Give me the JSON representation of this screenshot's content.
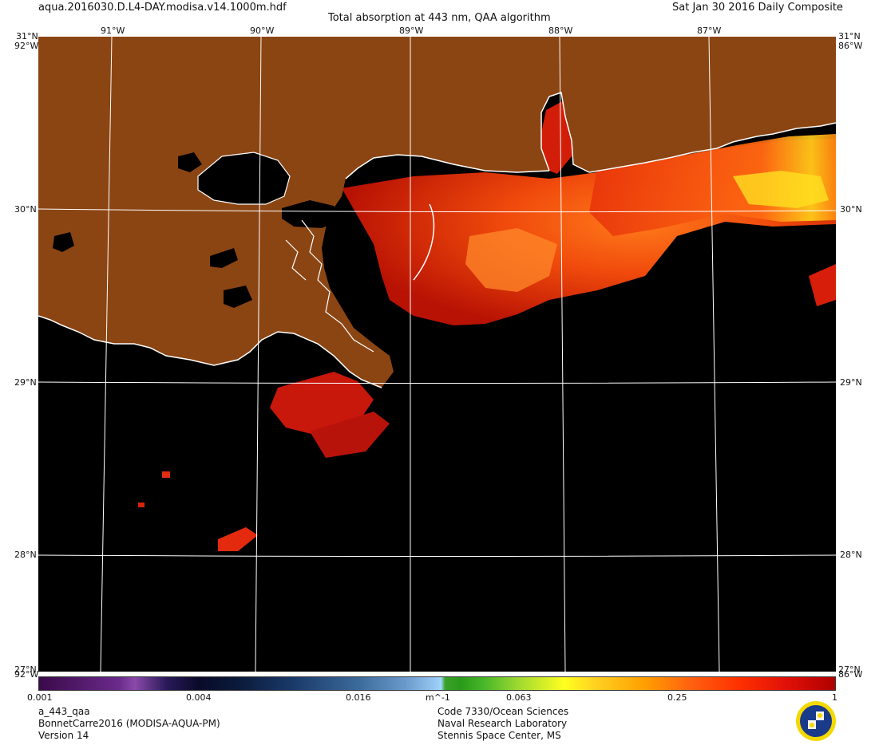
{
  "header": {
    "filename": "aqua.2016030.D.L4-DAY.modisa.v14.1000m.hdf",
    "title": "Total absorption at 443 nm, QAA algorithm",
    "date": "Sat Jan 30 2016 Daily Composite"
  },
  "map": {
    "longitude_labels": [
      "91°W",
      "90°W",
      "89°W",
      "88°W",
      "87°W"
    ],
    "latitude_labels": [
      "30°N",
      "29°N",
      "28°N"
    ],
    "corner_labels": {
      "top_left": "31°N",
      "top_right": "31°N",
      "top_left_w": "92°W",
      "top_right_w": "86°W",
      "bottom_left": "27°N",
      "bottom_right": "27°N",
      "bottom_left_w": "92°W",
      "bottom_right_w": "86°W"
    },
    "colors": {
      "land": "#8B4513",
      "water_nodata": "#000000",
      "grid": "#ffffff",
      "coastline": "#ffffff"
    }
  },
  "colorbar": {
    "ticks": [
      "0.001",
      "0.004",
      "0.016",
      "m^-1",
      "0.063",
      "0.25",
      "1"
    ],
    "unit": "m^-1"
  },
  "footer": {
    "product": "a_443_qaa",
    "dataset": "BonnetCarre2016 (MODISA-AQUA-PM)",
    "version": "Version 14",
    "org_line1": "Code 7330/Ocean Sciences",
    "org_line2": "Naval Research Laboratory",
    "org_line3": "Stennis Space Center, MS"
  }
}
